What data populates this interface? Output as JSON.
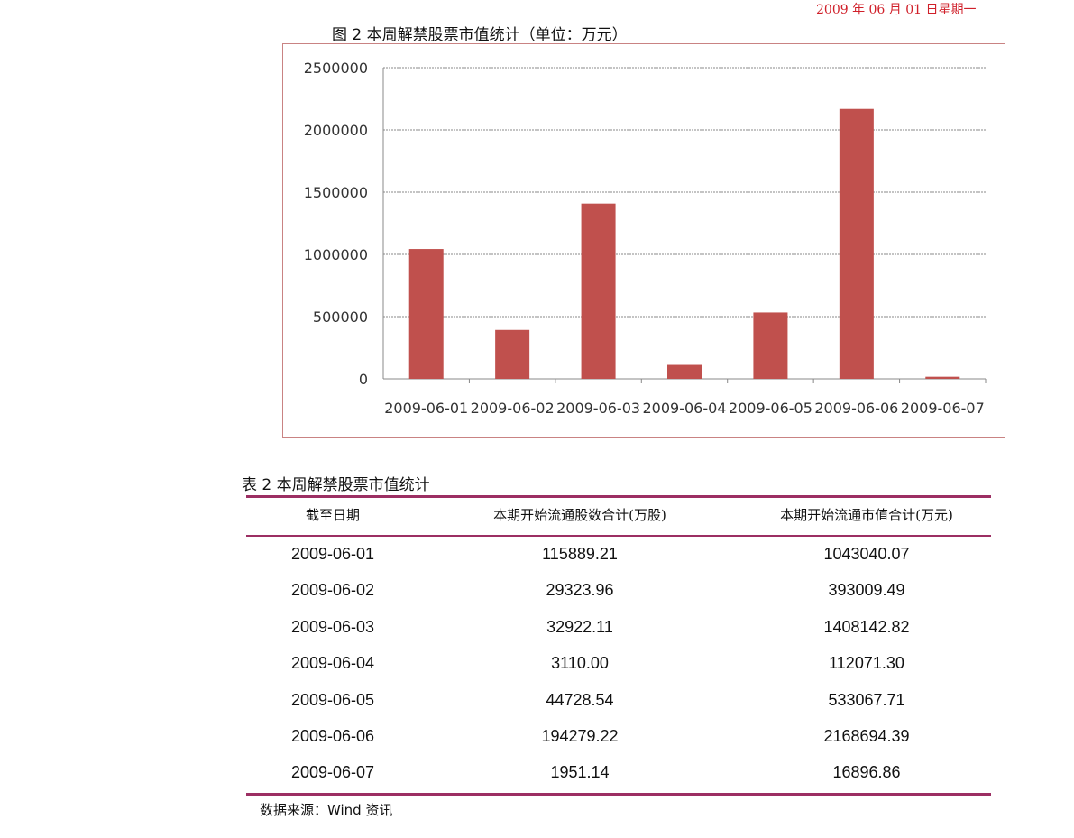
{
  "header": {
    "date": "2009 年 06 月 01 日星期一"
  },
  "figure": {
    "title": "图 2 本周解禁股票市值统计（单位：万元）"
  },
  "chart_data": {
    "type": "bar",
    "title": "图 2 本周解禁股票市值统计（单位：万元）",
    "categories": [
      "2009-06-01",
      "2009-06-02",
      "2009-06-03",
      "2009-06-04",
      "2009-06-05",
      "2009-06-06",
      "2009-06-07"
    ],
    "values": [
      1043040.07,
      393009.49,
      1408142.82,
      112071.3,
      533067.71,
      2168694.39,
      16896.86
    ],
    "ylim": [
      0,
      2500000
    ],
    "yticks": [
      "0",
      "500000",
      "1000000",
      "1500000",
      "2000000",
      "2500000"
    ],
    "grid": true,
    "bar_color": "#c0504d",
    "xlabel": "",
    "ylabel": ""
  },
  "table": {
    "title": "表 2 本周解禁股票市值统计",
    "headers": [
      "截至日期",
      "本期开始流通股数合计(万股)",
      "本期开始流通市值合计(万元)"
    ],
    "rows": [
      [
        "2009-06-01",
        "115889.21",
        "1043040.07"
      ],
      [
        "2009-06-02",
        "29323.96",
        "393009.49"
      ],
      [
        "2009-06-03",
        "32922.11",
        "1408142.82"
      ],
      [
        "2009-06-04",
        "3110.00",
        "112071.30"
      ],
      [
        "2009-06-05",
        "44728.54",
        "533067.71"
      ],
      [
        "2009-06-06",
        "194279.22",
        "2168694.39"
      ],
      [
        "2009-06-07",
        "1951.14",
        "16896.86"
      ]
    ],
    "line_color": "#9c2f63"
  },
  "footer": {
    "source": "数据来源：Wind 资讯"
  }
}
